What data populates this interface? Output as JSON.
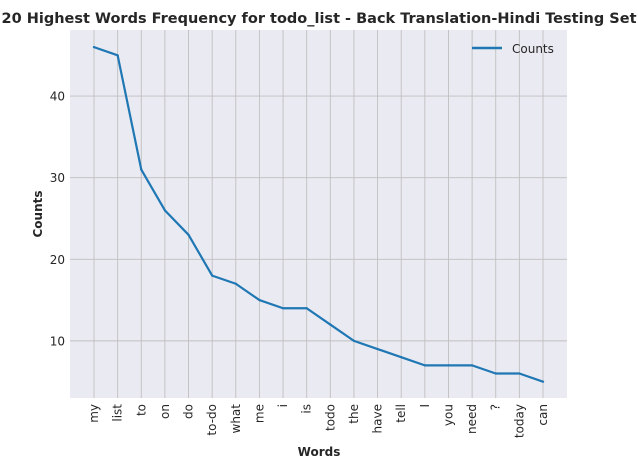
{
  "chart_data": {
    "type": "line",
    "title": "20 Highest Words Frequency for todo_list - Back Translation-Hindi Testing Set",
    "xlabel": "Words",
    "ylabel": "Counts",
    "categories": [
      "my",
      "list",
      "to",
      "on",
      "do",
      "to-do",
      "what",
      "me",
      "i",
      "is",
      "todo",
      "the",
      "have",
      "tell",
      "I",
      "you",
      "need",
      "?",
      "today",
      "can"
    ],
    "series": [
      {
        "name": "Counts",
        "values": [
          46,
          45,
          31,
          26,
          23,
          18,
          17,
          15,
          14,
          14,
          12,
          10,
          9,
          8,
          7,
          7,
          7,
          6,
          6,
          5
        ]
      }
    ],
    "ylim": [
      3.0,
      48.1
    ],
    "yticks": [
      10,
      20,
      30,
      40
    ],
    "grid": true,
    "legend_position": "top-right",
    "line_color": "#1f77b4",
    "plot_background": "#eaeaf2",
    "grid_color": "#c0c0c0"
  }
}
